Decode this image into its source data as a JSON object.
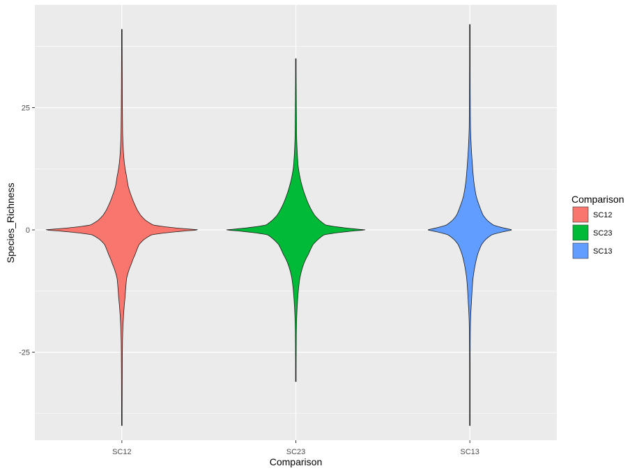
{
  "chart_data": {
    "type": "violin",
    "xlabel": "Comparison",
    "ylabel": "Species_Richness",
    "categories": [
      "SC12",
      "SC23",
      "SC13"
    ],
    "ylim": [
      -43,
      46
    ],
    "yticks": [
      -25,
      0,
      25
    ],
    "grid": true,
    "legend": {
      "title": "Comparison",
      "position": "right",
      "entries": [
        "SC12",
        "SC23",
        "SC13"
      ]
    },
    "colors": {
      "SC12": "#F8766D",
      "SC23": "#00BA38",
      "SC13": "#619CFF",
      "panel": "#EBEBEB",
      "grid": "#FFFFFF"
    },
    "series": [
      {
        "name": "SC12",
        "range": [
          -40,
          41
        ],
        "profile": [
          [
            -40,
            0.003
          ],
          [
            -30,
            0.005
          ],
          [
            -23,
            0.008
          ],
          [
            -18,
            0.02
          ],
          [
            -14,
            0.04
          ],
          [
            -10,
            0.06
          ],
          [
            -7,
            0.12
          ],
          [
            -5,
            0.17
          ],
          [
            -3,
            0.22
          ],
          [
            -2,
            0.28
          ],
          [
            -1,
            0.38
          ],
          [
            0,
            1.0
          ],
          [
            1,
            0.4
          ],
          [
            2,
            0.3
          ],
          [
            3,
            0.24
          ],
          [
            4,
            0.2
          ],
          [
            5,
            0.17
          ],
          [
            7,
            0.12
          ],
          [
            9,
            0.08
          ],
          [
            11,
            0.06
          ],
          [
            14,
            0.03
          ],
          [
            16,
            0.02
          ],
          [
            20,
            0.01
          ],
          [
            25,
            0.007
          ],
          [
            41,
            0.003
          ]
        ]
      },
      {
        "name": "SC23",
        "range": [
          -31,
          35
        ],
        "profile": [
          [
            -31,
            0.003
          ],
          [
            -21,
            0.006
          ],
          [
            -15,
            0.02
          ],
          [
            -10,
            0.05
          ],
          [
            -7,
            0.1
          ],
          [
            -5,
            0.16
          ],
          [
            -3,
            0.22
          ],
          [
            -2,
            0.28
          ],
          [
            -1,
            0.36
          ],
          [
            0,
            0.9
          ],
          [
            1,
            0.38
          ],
          [
            2,
            0.3
          ],
          [
            3,
            0.24
          ],
          [
            5,
            0.17
          ],
          [
            7,
            0.12
          ],
          [
            9,
            0.08
          ],
          [
            11,
            0.05
          ],
          [
            13,
            0.03
          ],
          [
            19,
            0.01
          ],
          [
            35,
            0.003
          ]
        ]
      },
      {
        "name": "SC13",
        "range": [
          -40,
          42
        ],
        "profile": [
          [
            -40,
            0.002
          ],
          [
            -25,
            0.004
          ],
          [
            -19,
            0.008
          ],
          [
            -15,
            0.02
          ],
          [
            -10,
            0.04
          ],
          [
            -7,
            0.07
          ],
          [
            -5,
            0.1
          ],
          [
            -3,
            0.15
          ],
          [
            -2,
            0.2
          ],
          [
            -1,
            0.28
          ],
          [
            0,
            0.55
          ],
          [
            1,
            0.3
          ],
          [
            2,
            0.22
          ],
          [
            3,
            0.17
          ],
          [
            5,
            0.12
          ],
          [
            7,
            0.08
          ],
          [
            10,
            0.05
          ],
          [
            14,
            0.03
          ],
          [
            18,
            0.015
          ],
          [
            21,
            0.008
          ],
          [
            42,
            0.002
          ]
        ]
      }
    ]
  }
}
